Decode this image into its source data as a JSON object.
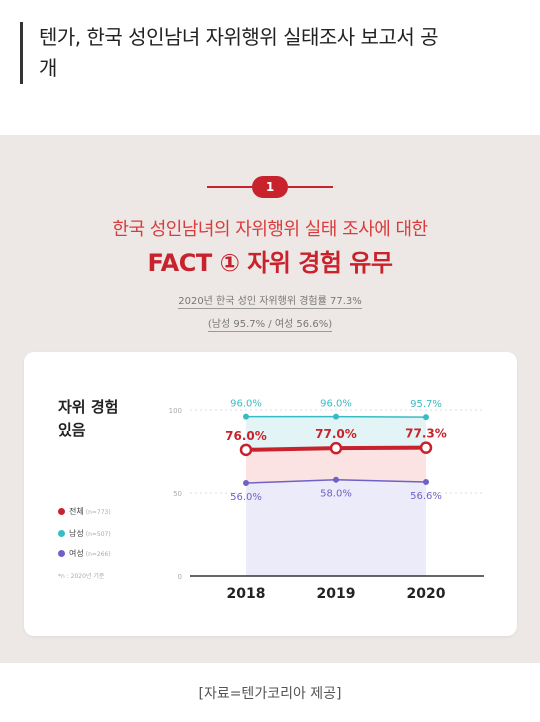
{
  "article": {
    "headline_line1": "텐가, 한국 성인남녀 자위행위 실태조사 보고서 공",
    "headline_line2": "개",
    "credit": "[자료=텐가코리아 제공]"
  },
  "infographic": {
    "badge": "1",
    "subtitle": "한국 성인남녀의 자위행위 실태 조사에 대한",
    "title": "FACT ① 자위 경험 유무",
    "note_line1": "2020년 한국 성인 자위행위 경험률 77.3%",
    "note_line2": "(남성 95.7% / 여성 56.6%)",
    "card_title_line1": "자위 경험",
    "card_title_line2": "있음",
    "legend": [
      {
        "label": "전체",
        "n": "(n=773)",
        "color": "#c8232c"
      },
      {
        "label": "남성",
        "n": "(n=507)",
        "color": "#38bcc4"
      },
      {
        "label": "여성",
        "n": "(n=266)",
        "color": "#6e62c8"
      }
    ],
    "legend_note": "*n : 2020년 기준"
  },
  "chart_data": {
    "type": "line",
    "x": [
      "2018",
      "2019",
      "2020"
    ],
    "ylim": [
      0,
      100
    ],
    "yticks": [
      "0",
      "50",
      "100"
    ],
    "grid": true,
    "legend_position": "left",
    "series": [
      {
        "name": "남성",
        "values": [
          96.0,
          96.0,
          95.7
        ],
        "labels": [
          "96.0%",
          "96.0%",
          "95.7%"
        ],
        "color": "#38bcc4"
      },
      {
        "name": "전체",
        "values": [
          76.0,
          77.0,
          77.3
        ],
        "labels": [
          "76.0%",
          "77.0%",
          "77.3%"
        ],
        "color": "#c8232c"
      },
      {
        "name": "여성",
        "values": [
          56.0,
          58.0,
          56.6
        ],
        "labels": [
          "56.0%",
          "58.0%",
          "56.6%"
        ],
        "color": "#6e62c8"
      }
    ]
  }
}
